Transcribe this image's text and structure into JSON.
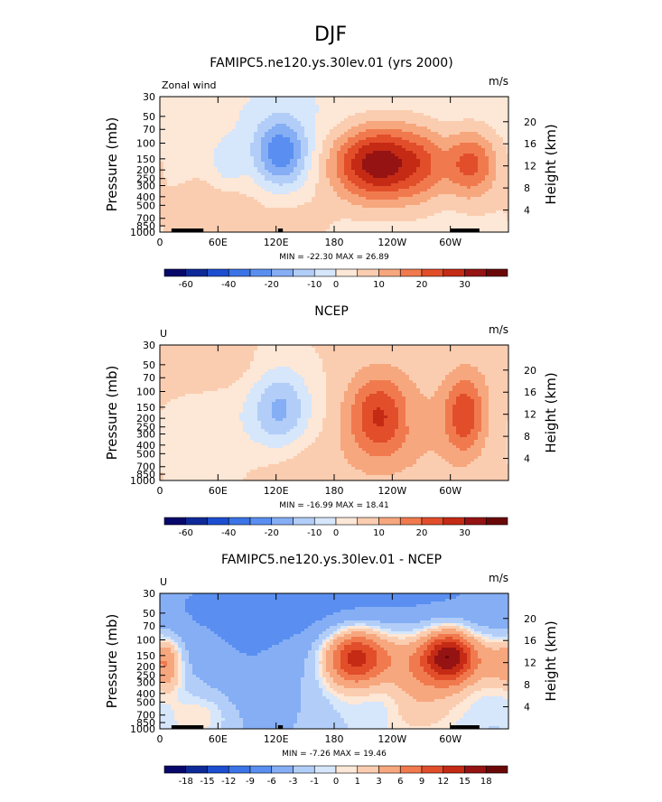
{
  "page_title": "DJF",
  "colors": {
    "scale_main": [
      "#08086b",
      "#0e2a99",
      "#1c4ed0",
      "#3b74e6",
      "#5a8ef0",
      "#85aef5",
      "#b2cef8",
      "#d6e6fb",
      "#fde7d6",
      "#fbcdb0",
      "#f7a77e",
      "#f07a4e",
      "#e24e2a",
      "#c42a14",
      "#951313",
      "#6a0808"
    ],
    "scale_diff": [
      "#08086b",
      "#0e2a99",
      "#1c4ed0",
      "#3b74e6",
      "#5a8ef0",
      "#85aef5",
      "#b2cef8",
      "#d6e6fb",
      "#fde7d6",
      "#fbcdb0",
      "#f7a77e",
      "#f07a4e",
      "#e24e2a",
      "#c42a14",
      "#951313",
      "#6a0808"
    ]
  },
  "chart_data": [
    {
      "type": "heatmap",
      "title": "FAMIPC5.ne120.ys.30lev.01 (yrs 2000)",
      "left_label": "Zonal wind",
      "units": "m/s",
      "ylabel": "Pressure (mb)",
      "ylabel_right": "Height (km)",
      "y_ticks": [
        "30",
        "50",
        "70",
        "100",
        "150",
        "200",
        "250",
        "300",
        "400",
        "500",
        "700",
        "850",
        "1000"
      ],
      "y_right_ticks": [
        "20",
        "16",
        "12",
        "8",
        "4"
      ],
      "x_ticks": [
        "0",
        "60E",
        "120E",
        "180",
        "120W",
        "60W"
      ],
      "stats": "MIN = -22.30   MAX =  26.89",
      "min": -22.3,
      "max": 26.89,
      "colorbar_labels": [
        "-60",
        "-40",
        "-20",
        "-10",
        "0",
        "10",
        "20",
        "30"
      ],
      "levels": [
        -70,
        -60,
        -50,
        -40,
        -30,
        -20,
        -15,
        -10,
        -5,
        0,
        5,
        10,
        15,
        20,
        25,
        30,
        35
      ],
      "scale": "scale_main",
      "blobs": [
        {
          "lon": 125,
          "p": 130,
          "amp": -21,
          "w": 20,
          "h": 0.18
        },
        {
          "lon": 70,
          "p": 180,
          "amp": -7,
          "w": 12,
          "h": 0.12
        },
        {
          "lon": 215,
          "p": 170,
          "amp": 26,
          "w": 30,
          "h": 0.2
        },
        {
          "lon": 250,
          "p": 170,
          "amp": 14,
          "w": 25,
          "h": 0.22
        },
        {
          "lon": 320,
          "p": 170,
          "amp": 20,
          "w": 20,
          "h": 0.18
        },
        {
          "lon": 275,
          "p": 170,
          "amp": 8,
          "w": 15,
          "h": 0.2
        },
        {
          "lon": 60,
          "p": 700,
          "amp": 6,
          "w": 40,
          "h": 0.25
        },
        {
          "lon": 145,
          "p": 800,
          "amp": 4,
          "w": 25,
          "h": 0.15
        },
        {
          "lon": 240,
          "p": 400,
          "amp": -2,
          "w": 50,
          "h": 0.3
        },
        {
          "lon": 180,
          "p": 40,
          "amp": -3,
          "w": 150,
          "h": 0.3
        }
      ],
      "base": -2
    },
    {
      "type": "heatmap",
      "title": "NCEP",
      "left_label": "U",
      "units": "m/s",
      "ylabel": "Pressure (mb)",
      "ylabel_right": "Height (km)",
      "y_ticks": [
        "30",
        "50",
        "70",
        "100",
        "150",
        "200",
        "250",
        "300",
        "400",
        "500",
        "700",
        "850",
        "1000"
      ],
      "y_right_ticks": [
        "20",
        "16",
        "12",
        "8",
        "4"
      ],
      "x_ticks": [
        "0",
        "60E",
        "120E",
        "180",
        "120W",
        "60W"
      ],
      "stats": "MIN = -16.99   MAX =  18.41",
      "min": -16.99,
      "max": 18.41,
      "colorbar_labels": [
        "-60",
        "-40",
        "-20",
        "-10",
        "0",
        "10",
        "20",
        "30"
      ],
      "levels": [
        -70,
        -60,
        -50,
        -40,
        -30,
        -20,
        -15,
        -10,
        -5,
        0,
        5,
        10,
        15,
        20,
        25,
        30,
        35
      ],
      "scale": "scale_main",
      "blobs": [
        {
          "lon": 125,
          "p": 160,
          "amp": -16,
          "w": 22,
          "h": 0.22
        },
        {
          "lon": 60,
          "p": 300,
          "amp": -4,
          "w": 40,
          "h": 0.3
        },
        {
          "lon": 225,
          "p": 190,
          "amp": 18,
          "w": 22,
          "h": 0.22
        },
        {
          "lon": 315,
          "p": 180,
          "amp": 17,
          "w": 15,
          "h": 0.2
        },
        {
          "lon": 270,
          "p": 300,
          "amp": 4,
          "w": 45,
          "h": 0.35
        },
        {
          "lon": 40,
          "p": 55,
          "amp": 5,
          "w": 40,
          "h": 0.12
        },
        {
          "lon": 140,
          "p": 700,
          "amp": 4,
          "w": 40,
          "h": 0.18
        },
        {
          "lon": 255,
          "p": 190,
          "amp": -2,
          "w": 4,
          "h": 0.05
        }
      ],
      "base": 0.5
    },
    {
      "type": "heatmap",
      "title": "FAMIPC5.ne120.ys.30lev.01 - NCEP",
      "left_label": "U",
      "units": "m/s",
      "ylabel": "Pressure (mb)",
      "ylabel_right": "Height (km)",
      "y_ticks": [
        "30",
        "50",
        "70",
        "100",
        "150",
        "200",
        "250",
        "300",
        "400",
        "500",
        "700",
        "850",
        "1000"
      ],
      "y_right_ticks": [
        "20",
        "16",
        "12",
        "8",
        "4"
      ],
      "x_ticks": [
        "0",
        "60E",
        "120E",
        "180",
        "120W",
        "60W"
      ],
      "stats": "MIN =  -7.26   MAX =  19.46",
      "min": -7.26,
      "max": 19.46,
      "colorbar_labels": [
        "-18",
        "-15",
        "-12",
        "-9",
        "-6",
        "-3",
        "-1",
        "0",
        "1",
        "3",
        "6",
        "9",
        "12",
        "15",
        "18"
      ],
      "levels": [
        -21,
        -18,
        -15,
        -12,
        -9,
        -6,
        -3,
        -1,
        0,
        1,
        3,
        6,
        9,
        12,
        15,
        18,
        21
      ],
      "scale": "scale_diff",
      "blobs": [
        {
          "lon": 200,
          "p": 150,
          "amp": 14,
          "w": 22,
          "h": 0.15
        },
        {
          "lon": 300,
          "p": 150,
          "amp": 18,
          "w": 20,
          "h": 0.14
        },
        {
          "lon": 250,
          "p": 170,
          "amp": 7,
          "w": 40,
          "h": 0.2
        },
        {
          "lon": 350,
          "p": 170,
          "amp": 6,
          "w": 15,
          "h": 0.14
        },
        {
          "lon": 10,
          "p": 180,
          "amp": 6,
          "w": 10,
          "h": 0.14
        },
        {
          "lon": 180,
          "p": 40,
          "amp": -6,
          "w": 200,
          "h": 0.28
        },
        {
          "lon": 90,
          "p": 450,
          "amp": -4,
          "w": 40,
          "h": 0.3
        },
        {
          "lon": 50,
          "p": 700,
          "amp": 4,
          "w": 30,
          "h": 0.15
        },
        {
          "lon": 260,
          "p": 600,
          "amp": 3,
          "w": 40,
          "h": 0.2
        },
        {
          "lon": 230,
          "p": 400,
          "amp": -3,
          "w": 20,
          "h": 0.15
        }
      ],
      "base": -1.5
    }
  ]
}
